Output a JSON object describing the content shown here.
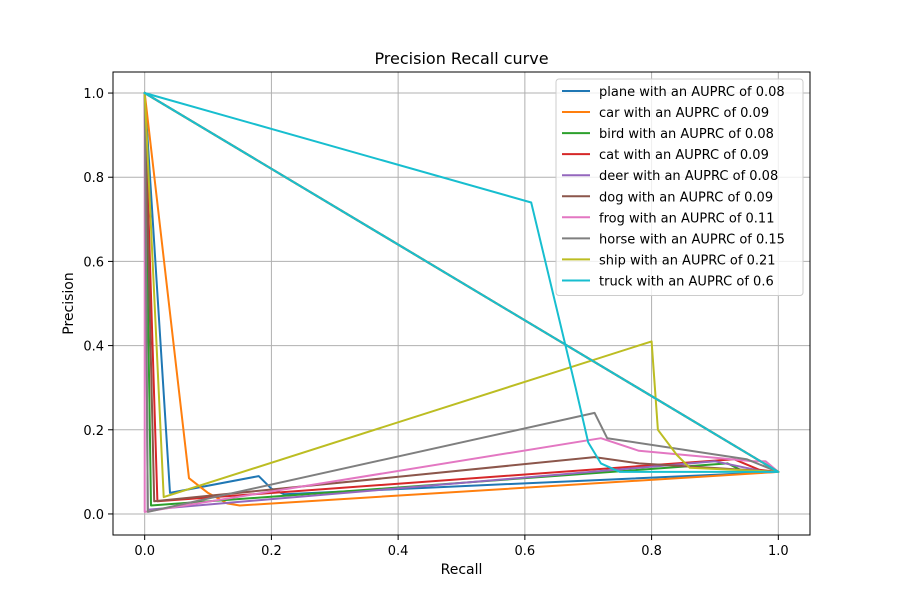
{
  "chart_data": {
    "type": "line",
    "title": "Precision Recall curve",
    "xlabel": "Recall",
    "ylabel": "Precision",
    "xlim": [
      -0.05,
      1.05
    ],
    "ylim": [
      -0.05,
      1.05
    ],
    "xticks": [
      0.0,
      0.2,
      0.4,
      0.6,
      0.8,
      1.0
    ],
    "yticks": [
      0.0,
      0.2,
      0.4,
      0.6,
      0.8,
      1.0
    ],
    "xtick_labels": [
      "0.0",
      "0.2",
      "0.4",
      "0.6",
      "0.8",
      "1.0"
    ],
    "ytick_labels": [
      "0.0",
      "0.2",
      "0.4",
      "0.6",
      "0.8",
      "1.0"
    ],
    "grid": true,
    "legend_position": "top-right",
    "series": [
      {
        "name": "plane with an AUPRC of 0.08",
        "color": "#1f77b4",
        "points": [
          [
            0.0,
            1.0
          ],
          [
            0.04,
            0.05
          ],
          [
            0.18,
            0.09
          ],
          [
            0.2,
            0.06
          ],
          [
            0.22,
            0.047
          ],
          [
            1.0,
            0.1
          ],
          [
            0.0,
            1.0
          ]
        ]
      },
      {
        "name": "car with an AUPRC of 0.09",
        "color": "#ff7f0e",
        "points": [
          [
            0.0,
            1.0
          ],
          [
            0.07,
            0.085
          ],
          [
            0.1,
            0.05
          ],
          [
            0.13,
            0.025
          ],
          [
            0.15,
            0.02
          ],
          [
            1.0,
            0.1
          ],
          [
            0.0,
            1.0
          ]
        ]
      },
      {
        "name": "bird with an AUPRC of 0.08",
        "color": "#2ca02c",
        "points": [
          [
            0.0,
            1.0
          ],
          [
            0.01,
            0.02
          ],
          [
            0.92,
            0.12
          ],
          [
            0.94,
            0.105
          ],
          [
            1.0,
            0.1
          ],
          [
            0.0,
            1.0
          ]
        ]
      },
      {
        "name": "cat with an AUPRC of 0.09",
        "color": "#d62728",
        "points": [
          [
            0.0,
            1.0
          ],
          [
            0.02,
            0.03
          ],
          [
            0.93,
            0.13
          ],
          [
            0.97,
            0.105
          ],
          [
            1.0,
            0.1
          ],
          [
            0.0,
            1.0
          ]
        ]
      },
      {
        "name": "deer with an AUPRC of 0.08",
        "color": "#9467bd",
        "points": [
          [
            0.0,
            1.0
          ],
          [
            0.005,
            0.01
          ],
          [
            0.9,
            0.125
          ],
          [
            0.98,
            0.1
          ],
          [
            1.0,
            0.1
          ],
          [
            0.0,
            1.0
          ]
        ]
      },
      {
        "name": "dog with an AUPRC of 0.09",
        "color": "#8c564b",
        "points": [
          [
            0.0,
            1.0
          ],
          [
            0.015,
            0.03
          ],
          [
            0.71,
            0.135
          ],
          [
            0.78,
            0.12
          ],
          [
            1.0,
            0.1
          ],
          [
            0.0,
            1.0
          ]
        ]
      },
      {
        "name": "frog with an AUPRC of 0.11",
        "color": "#e377c2",
        "points": [
          [
            0.0,
            1.0
          ],
          [
            0.0,
            0.005
          ],
          [
            0.72,
            0.18
          ],
          [
            0.78,
            0.15
          ],
          [
            0.96,
            0.125
          ],
          [
            0.98,
            0.125
          ],
          [
            1.0,
            0.1
          ],
          [
            0.0,
            1.0
          ]
        ]
      },
      {
        "name": "horse with an AUPRC of 0.15",
        "color": "#7f7f7f",
        "points": [
          [
            0.0,
            1.0
          ],
          [
            0.005,
            0.005
          ],
          [
            0.71,
            0.24
          ],
          [
            0.73,
            0.18
          ],
          [
            0.95,
            0.13
          ],
          [
            1.0,
            0.1
          ],
          [
            0.0,
            1.0
          ]
        ]
      },
      {
        "name": "ship with an AUPRC of 0.21",
        "color": "#bcbd22",
        "points": [
          [
            0.0,
            1.0
          ],
          [
            0.03,
            0.04
          ],
          [
            0.8,
            0.41
          ],
          [
            0.81,
            0.2
          ],
          [
            0.84,
            0.14
          ],
          [
            0.86,
            0.11
          ],
          [
            1.0,
            0.1
          ],
          [
            0.0,
            1.0
          ]
        ]
      },
      {
        "name": "truck with an AUPRC of 0.6",
        "color": "#17becf",
        "points": [
          [
            0.0,
            1.0
          ],
          [
            0.61,
            0.74
          ],
          [
            0.68,
            0.3
          ],
          [
            0.7,
            0.17
          ],
          [
            0.72,
            0.12
          ],
          [
            0.75,
            0.1
          ],
          [
            1.0,
            0.1
          ],
          [
            0.0,
            1.0
          ]
        ]
      }
    ]
  }
}
